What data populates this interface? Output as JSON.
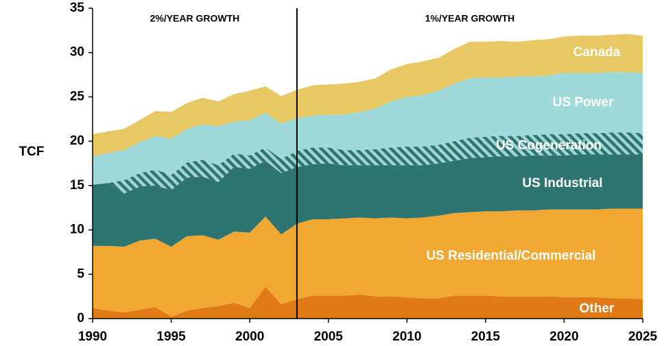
{
  "chart_data": {
    "type": "stacked_area",
    "ylabel": "TCF",
    "annotations": [
      "2%/YEAR GROWTH",
      "1%/YEAR GROWTH"
    ],
    "divider_x": 2003,
    "x": [
      1990,
      1991,
      1992,
      1993,
      1994,
      1995,
      1996,
      1997,
      1998,
      1999,
      2000,
      2001,
      2002,
      2003,
      2004,
      2005,
      2006,
      2007,
      2008,
      2009,
      2010,
      2011,
      2012,
      2013,
      2014,
      2015,
      2016,
      2017,
      2018,
      2019,
      2020,
      2021,
      2022,
      2023,
      2024,
      2025
    ],
    "xlim": [
      1990,
      2025
    ],
    "xticks": [
      1990,
      1995,
      2000,
      2005,
      2010,
      2015,
      2020,
      2025
    ],
    "ylim": [
      0,
      35
    ],
    "yticks": [
      0,
      5,
      10,
      15,
      20,
      25,
      30,
      35
    ],
    "series": [
      {
        "name": "Other",
        "color": "#e07b18",
        "values": [
          1.2,
          0.9,
          0.7,
          1.0,
          1.3,
          0.2,
          0.9,
          1.2,
          1.4,
          1.8,
          1.2,
          3.6,
          1.6,
          2.2,
          2.6,
          2.6,
          2.6,
          2.7,
          2.5,
          2.5,
          2.4,
          2.3,
          2.3,
          2.6,
          2.6,
          2.6,
          2.5,
          2.5,
          2.5,
          2.5,
          2.4,
          2.4,
          2.4,
          2.3,
          2.3,
          2.2
        ]
      },
      {
        "name": "US Residential/Commercial",
        "color": "#f0a832",
        "values": [
          7.0,
          7.3,
          7.4,
          7.8,
          7.7,
          7.9,
          8.4,
          8.2,
          7.5,
          8.0,
          8.5,
          7.9,
          7.9,
          8.5,
          8.6,
          8.6,
          8.7,
          8.7,
          8.8,
          8.9,
          8.9,
          9.1,
          9.3,
          9.3,
          9.4,
          9.5,
          9.6,
          9.7,
          9.7,
          9.8,
          9.9,
          9.9,
          9.9,
          10.1,
          10.1,
          10.2
        ]
      },
      {
        "name": "US Industrial",
        "color": "#2e7471",
        "values": [
          6.9,
          7.1,
          6.0,
          6.1,
          6.0,
          6.4,
          6.6,
          6.6,
          6.5,
          7.3,
          7.2,
          6.3,
          6.9,
          6.4,
          6.2,
          6.3,
          6.0,
          5.9,
          6.0,
          5.9,
          6.0,
          5.9,
          5.9,
          5.9,
          6.1,
          6.1,
          6.2,
          6.1,
          6.2,
          6.1,
          6.1,
          6.2,
          6.2,
          6.1,
          6.1,
          6.1
        ]
      },
      {
        "name": "US Cogeneration",
        "color": "#9fd6d3",
        "values": [
          0,
          0,
          1.5,
          1.5,
          1.8,
          1.7,
          1.7,
          1.9,
          1.9,
          1.5,
          1.5,
          1.5,
          1.6,
          1.8,
          1.9,
          1.8,
          1.7,
          1.7,
          1.8,
          2.0,
          2.1,
          2.1,
          2.1,
          2.2,
          2.3,
          2.3,
          2.3,
          2.3,
          2.3,
          2.4,
          2.4,
          2.4,
          2.4,
          2.5,
          2.5,
          2.4
        ]
      },
      {
        "name": "US Power",
        "color": "#a0d9d9",
        "values": [
          3.2,
          3.4,
          3.4,
          3.5,
          3.8,
          4.1,
          3.8,
          4.0,
          4.4,
          3.6,
          4.0,
          3.9,
          4.0,
          3.7,
          3.6,
          3.7,
          4.0,
          4.3,
          4.6,
          5.2,
          5.6,
          5.8,
          6.1,
          6.5,
          6.7,
          6.7,
          6.6,
          6.7,
          6.6,
          6.6,
          6.9,
          6.8,
          6.8,
          6.8,
          6.8,
          6.8
        ]
      },
      {
        "name": "Canada",
        "color": "#e8c862",
        "values": [
          2.5,
          2.4,
          2.4,
          2.5,
          2.8,
          3.0,
          2.9,
          3.0,
          2.8,
          3.1,
          3.3,
          3.0,
          3.1,
          3.2,
          3.4,
          3.4,
          3.5,
          3.4,
          3.4,
          3.6,
          3.7,
          3.8,
          3.7,
          3.9,
          4.1,
          4.0,
          4.1,
          3.9,
          4.1,
          4.1,
          4.1,
          4.2,
          4.2,
          4.2,
          4.3,
          4.2
        ]
      }
    ]
  }
}
